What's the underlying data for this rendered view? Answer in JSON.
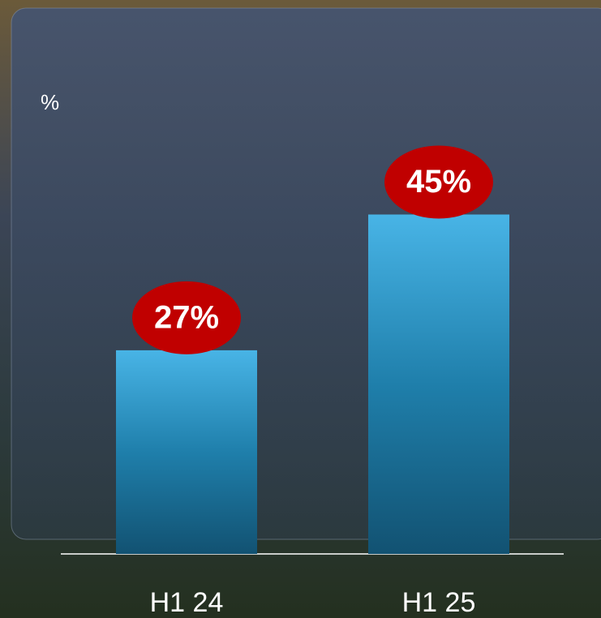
{
  "chart_data": {
    "type": "bar",
    "axis_label": "%",
    "categories": [
      "H1 24",
      "H1 25"
    ],
    "values": [
      27,
      45
    ],
    "value_labels": [
      "27%",
      "45%"
    ],
    "color": "#48b4e6",
    "label_color": "#c00000"
  }
}
